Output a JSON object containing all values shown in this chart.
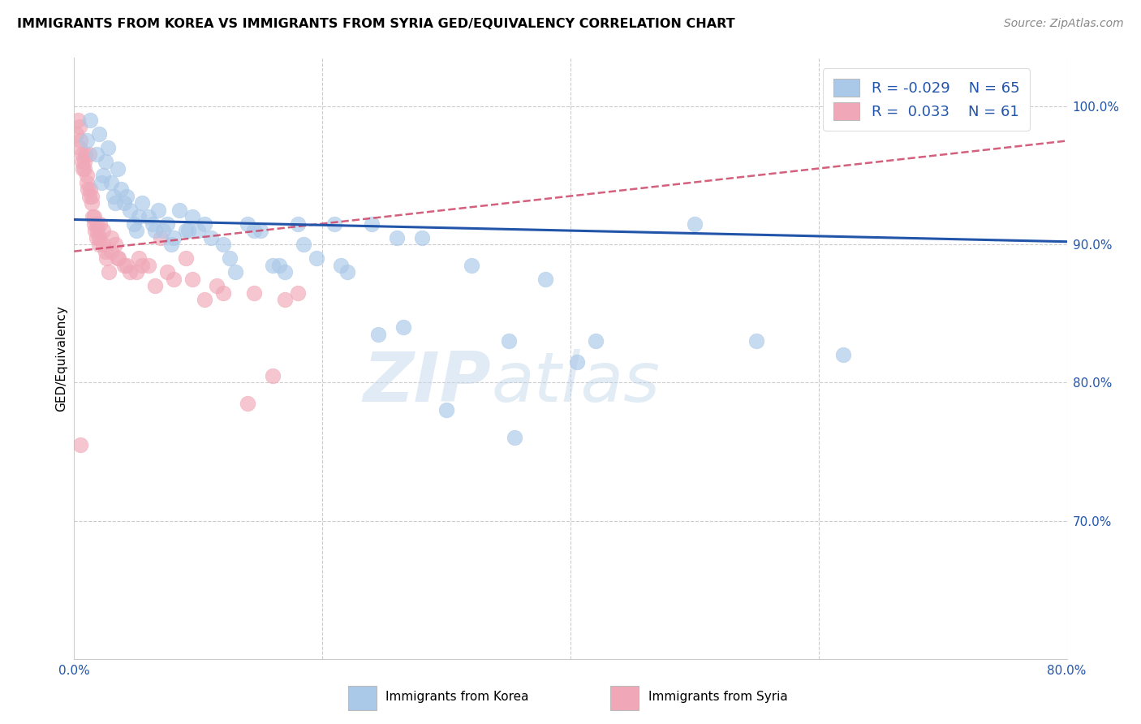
{
  "title": "IMMIGRANTS FROM KOREA VS IMMIGRANTS FROM SYRIA GED/EQUIVALENCY CORRELATION CHART",
  "source": "Source: ZipAtlas.com",
  "ylabel": "GED/Equivalency",
  "yticks": [
    70.0,
    80.0,
    90.0,
    100.0
  ],
  "ytick_labels": [
    "70.0%",
    "80.0%",
    "90.0%",
    "100.0%"
  ],
  "xticks": [
    0.0,
    20.0,
    40.0,
    60.0,
    80.0
  ],
  "xtick_labels": [
    "0.0%",
    "",
    "",
    "",
    "80.0%"
  ],
  "xmin": 0.0,
  "xmax": 80.0,
  "ymin": 60.0,
  "ymax": 103.5,
  "korea_R": "-0.029",
  "korea_N": "65",
  "syria_R": "0.033",
  "syria_N": "61",
  "korea_color": "#aac8e8",
  "korea_edge_color": "#aac8e8",
  "korea_line_color": "#2255aa",
  "syria_color": "#f0a8b8",
  "syria_edge_color": "#f0a8b8",
  "syria_line_color": "#cc4466",
  "korea_trend_x0": 0.0,
  "korea_trend_x1": 80.0,
  "korea_trend_y0": 91.8,
  "korea_trend_y1": 90.2,
  "syria_trend_x0": 0.0,
  "syria_trend_x1": 80.0,
  "syria_trend_y0": 89.5,
  "syria_trend_y1": 97.5,
  "korea_x": [
    1.0,
    1.3,
    1.8,
    2.0,
    2.3,
    2.5,
    2.7,
    3.0,
    3.2,
    3.5,
    3.8,
    4.0,
    4.5,
    4.8,
    5.0,
    5.5,
    6.0,
    6.3,
    6.8,
    7.2,
    7.5,
    8.0,
    8.5,
    9.0,
    9.5,
    10.0,
    11.0,
    12.5,
    13.0,
    14.0,
    15.0,
    16.5,
    17.0,
    18.0,
    19.5,
    21.0,
    22.0,
    24.0,
    26.0,
    28.0,
    32.0,
    35.0,
    38.0,
    42.0,
    50.0,
    55.0,
    62.0,
    2.2,
    3.3,
    4.2,
    5.2,
    6.5,
    7.8,
    9.2,
    10.5,
    12.0,
    14.5,
    16.0,
    18.5,
    21.5,
    24.5,
    26.5,
    30.0,
    35.5,
    40.5
  ],
  "korea_y": [
    97.5,
    99.0,
    96.5,
    98.0,
    95.0,
    96.0,
    97.0,
    94.5,
    93.5,
    95.5,
    94.0,
    93.0,
    92.5,
    91.5,
    91.0,
    93.0,
    92.0,
    91.5,
    92.5,
    91.0,
    91.5,
    90.5,
    92.5,
    91.0,
    92.0,
    91.0,
    90.5,
    89.0,
    88.0,
    91.5,
    91.0,
    88.5,
    88.0,
    91.5,
    89.0,
    91.5,
    88.0,
    91.5,
    90.5,
    90.5,
    88.5,
    83.0,
    87.5,
    83.0,
    91.5,
    83.0,
    82.0,
    94.5,
    93.0,
    93.5,
    92.0,
    91.0,
    90.0,
    91.0,
    91.5,
    90.0,
    91.0,
    88.5,
    90.0,
    88.5,
    83.5,
    84.0,
    78.0,
    76.0,
    81.5
  ],
  "syria_x": [
    0.2,
    0.3,
    0.4,
    0.5,
    0.6,
    0.7,
    0.8,
    0.9,
    1.0,
    1.1,
    1.2,
    1.3,
    1.4,
    1.5,
    1.6,
    1.7,
    1.8,
    1.9,
    2.0,
    2.1,
    2.3,
    2.5,
    2.8,
    3.0,
    3.3,
    3.6,
    4.0,
    4.5,
    5.0,
    5.5,
    6.5,
    7.0,
    8.0,
    9.0,
    10.5,
    12.0,
    14.0,
    16.0,
    18.0,
    0.4,
    0.6,
    0.8,
    1.0,
    1.2,
    1.4,
    1.6,
    1.8,
    2.0,
    2.3,
    2.6,
    3.0,
    3.5,
    4.2,
    5.2,
    6.0,
    7.5,
    9.5,
    11.5,
    14.5,
    17.0,
    0.5
  ],
  "syria_y": [
    98.0,
    99.0,
    98.5,
    97.5,
    96.5,
    95.5,
    96.0,
    96.5,
    95.0,
    94.0,
    96.5,
    94.0,
    93.0,
    92.0,
    91.5,
    91.0,
    90.5,
    91.0,
    90.0,
    91.5,
    91.0,
    89.5,
    88.0,
    90.5,
    90.0,
    89.0,
    88.5,
    88.0,
    88.0,
    88.5,
    87.0,
    90.5,
    87.5,
    89.0,
    86.0,
    86.5,
    78.5,
    80.5,
    86.5,
    97.0,
    96.0,
    95.5,
    94.5,
    93.5,
    93.5,
    92.0,
    91.5,
    90.5,
    90.0,
    89.0,
    89.5,
    89.0,
    88.5,
    89.0,
    88.5,
    88.0,
    87.5,
    87.0,
    86.5,
    86.0,
    75.5
  ]
}
